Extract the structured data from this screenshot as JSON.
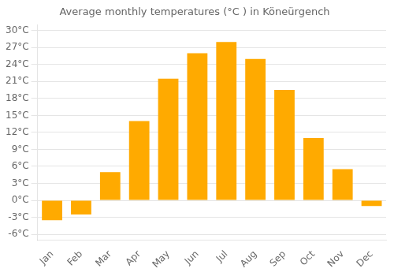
{
  "chart_data": {
    "type": "bar",
    "title": "Average monthly temperatures (°C ) in Köneürgench",
    "categories": [
      "Jan",
      "Feb",
      "Mar",
      "Apr",
      "May",
      "Jun",
      "Jul",
      "Aug",
      "Sep",
      "Oct",
      "Nov",
      "Dec"
    ],
    "values": [
      -3.5,
      -2.5,
      5.0,
      14.0,
      21.5,
      26.0,
      28.0,
      25.0,
      19.5,
      11.0,
      5.5,
      -1.0
    ],
    "color": "#FFAA00",
    "ylim": [
      -7,
      31
    ],
    "yticks": [
      {
        "value": -6,
        "label": "-6°C"
      },
      {
        "value": -3,
        "label": "-3°C"
      },
      {
        "value": 0,
        "label": "0°C"
      },
      {
        "value": 3,
        "label": "3°C"
      },
      {
        "value": 6,
        "label": "6°C"
      },
      {
        "value": 9,
        "label": "9°C"
      },
      {
        "value": 12,
        "label": "12°C"
      },
      {
        "value": 15,
        "label": "15°C"
      },
      {
        "value": 18,
        "label": "18°C"
      },
      {
        "value": 21,
        "label": "21°C"
      },
      {
        "value": 24,
        "label": "24°C"
      },
      {
        "value": 27,
        "label": "27°C"
      },
      {
        "value": 30,
        "label": "30°C"
      }
    ],
    "grid": true
  }
}
